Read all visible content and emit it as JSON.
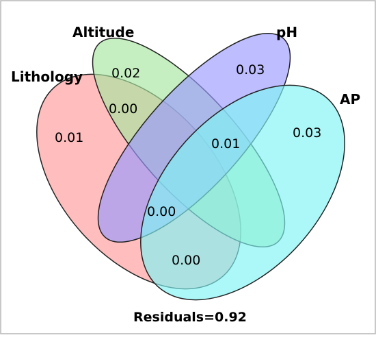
{
  "sets": [
    {
      "key": "lithology",
      "label": "Lithology",
      "color": "#ff9999"
    },
    {
      "key": "altitude",
      "label": "Altitude",
      "color": "#a8e6a0"
    },
    {
      "key": "ph",
      "label": "pH",
      "color": "#9999ff"
    },
    {
      "key": "ap",
      "label": "AP",
      "color": "#7ff5f5"
    }
  ],
  "regions": [
    {
      "key": "lithology-only",
      "value": "0.01"
    },
    {
      "key": "altitude-only",
      "value": "0.02"
    },
    {
      "key": "ph-only",
      "value": "0.03"
    },
    {
      "key": "ap-only",
      "value": "0.03"
    },
    {
      "key": "lithology-altitude",
      "value": "0.00"
    },
    {
      "key": "ph-ap",
      "value": "0.01"
    },
    {
      "key": "lithology-altitude-ap",
      "value": "0.00"
    },
    {
      "key": "lithology-ap",
      "value": "0.00"
    }
  ],
  "residuals": "Residuals=0.92"
}
